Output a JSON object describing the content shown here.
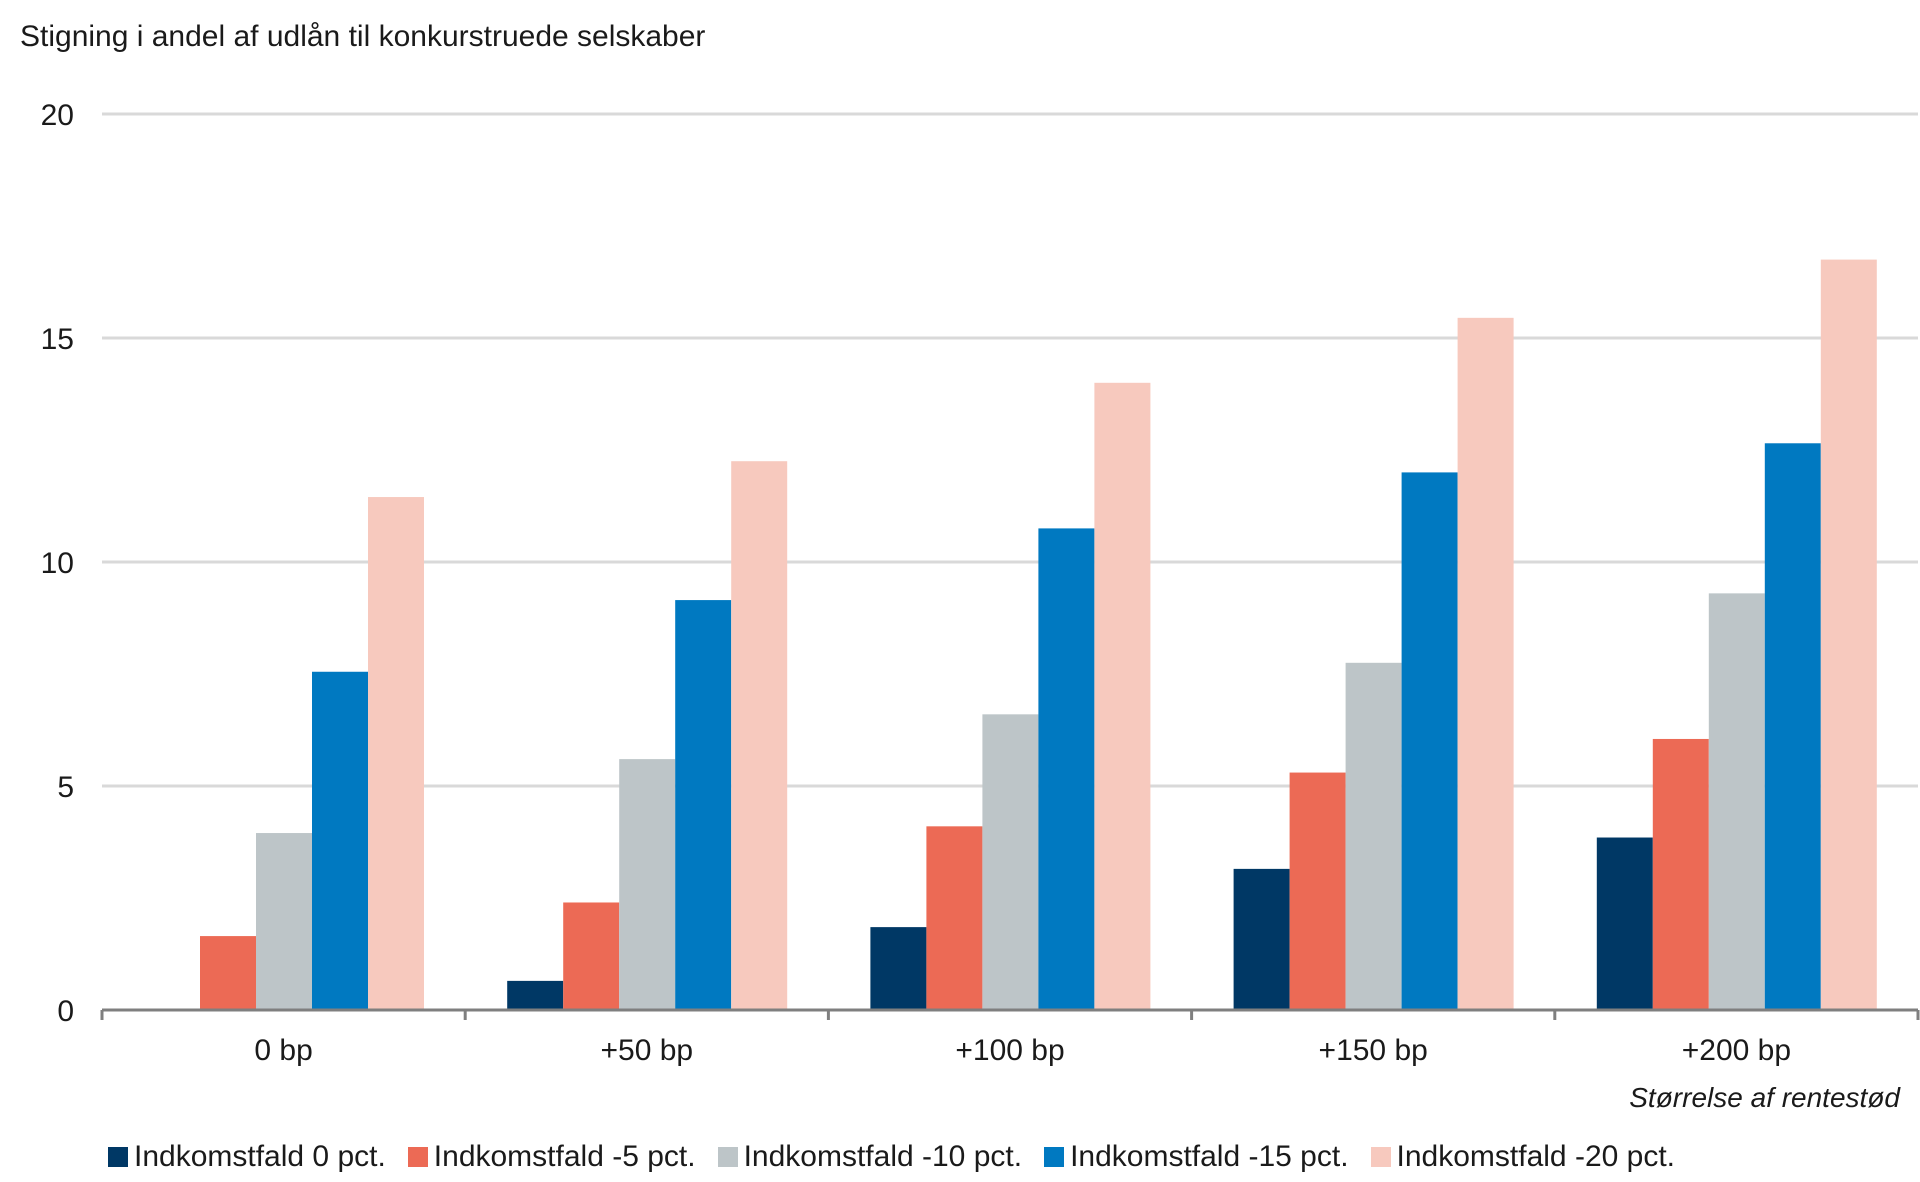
{
  "chart_data": {
    "type": "bar",
    "title": "",
    "ylabel": "Stigning i andel af udlån til konkurstruede selskaber",
    "xlabel": "Størrelse af rentestød",
    "categories": [
      "0 bp",
      "+50 bp",
      "+100 bp",
      "+150 bp",
      "+200 bp"
    ],
    "ylim": [
      0,
      20
    ],
    "yticks": [
      "0",
      "5",
      "10",
      "15",
      "20"
    ],
    "grid": true,
    "legend_position": "bottom",
    "series": [
      {
        "name": "Indkomstfald 0 pct.",
        "color": "#003865",
        "values": [
          0.0,
          0.65,
          1.85,
          3.15,
          3.85
        ]
      },
      {
        "name": "Indkomstfald -5 pct.",
        "color": "#ec6a55",
        "values": [
          1.65,
          2.4,
          4.1,
          5.3,
          6.05
        ]
      },
      {
        "name": "Indkomstfald -10 pct.",
        "color": "#bdc5c8",
        "values": [
          3.95,
          5.6,
          6.6,
          7.75,
          9.3
        ]
      },
      {
        "name": "Indkomstfald -15 pct.",
        "color": "#0079c1",
        "values": [
          7.55,
          9.15,
          10.75,
          12.0,
          12.65
        ]
      },
      {
        "name": "Indkomstfald -20 pct.",
        "color": "#f7c9be",
        "values": [
          11.45,
          12.25,
          14.0,
          15.45,
          16.75
        ]
      }
    ]
  }
}
